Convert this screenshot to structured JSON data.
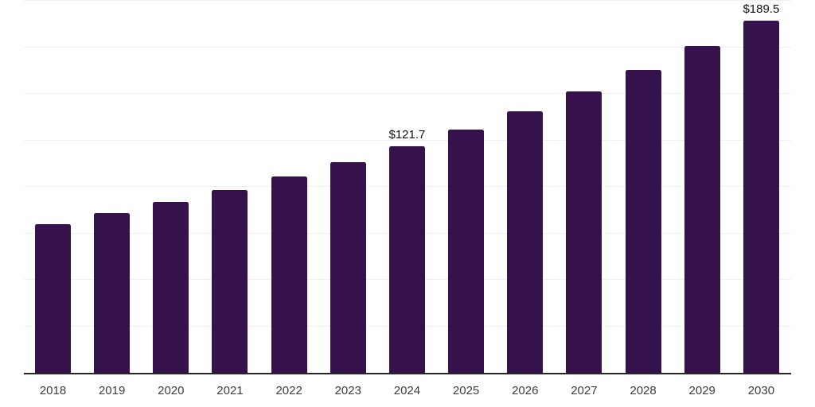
{
  "chart_data": {
    "type": "bar",
    "title": "",
    "xlabel": "",
    "ylabel": "",
    "categories": [
      "2018",
      "2019",
      "2020",
      "2021",
      "2022",
      "2023",
      "2024",
      "2025",
      "2026",
      "2027",
      "2028",
      "2029",
      "2030"
    ],
    "values": [
      80.1,
      85.7,
      91.9,
      98.3,
      105.6,
      113.1,
      121.7,
      130.7,
      140.6,
      151.1,
      162.7,
      175.6,
      189.5
    ],
    "data_labels": [
      "",
      "",
      "",
      "",
      "",
      "",
      "$121.7",
      "",
      "",
      "",
      "",
      "",
      "$189.5"
    ],
    "ylim": [
      0,
      200
    ],
    "grid_step": 25,
    "grid_visible": true,
    "legend_visible": false,
    "colors": {
      "bar": "#36124D",
      "gridline": "#f0f0f0",
      "axis_line": "#262626",
      "tick_label": "#3c3c3c",
      "value_label": "#111111",
      "background": "#ffffff"
    }
  }
}
